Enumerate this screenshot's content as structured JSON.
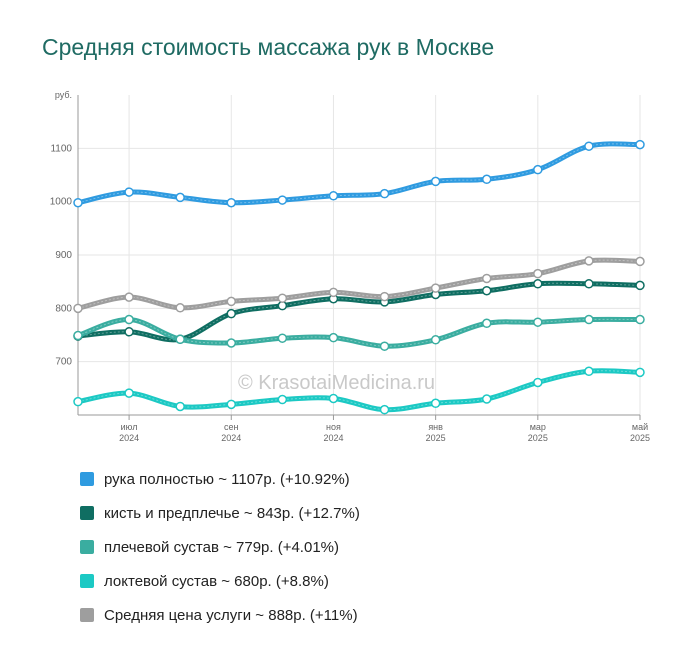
{
  "chart_data": {
    "type": "line",
    "title": "Средняя стоимость массажа рук в Москве",
    "ylabel": "руб.",
    "ylim": [
      600,
      1200
    ],
    "yticks": [
      "700",
      "800",
      "900",
      "1000",
      "1100"
    ],
    "xticks": [
      {
        "index": 1,
        "line1": "июл",
        "line2": "2024"
      },
      {
        "index": 3,
        "line1": "сен",
        "line2": "2024"
      },
      {
        "index": 5,
        "line1": "ноя",
        "line2": "2024"
      },
      {
        "index": 7,
        "line1": "янв",
        "line2": "2025"
      },
      {
        "index": 9,
        "line1": "мар",
        "line2": "2025"
      },
      {
        "index": 11,
        "line1": "май",
        "line2": "2025"
      }
    ],
    "categories": [
      "2024-06",
      "2024-07",
      "2024-08",
      "2024-09",
      "2024-10",
      "2024-11",
      "2024-12",
      "2025-01",
      "2025-02",
      "2025-03",
      "2025-04",
      "2025-05"
    ],
    "grid": true,
    "series": [
      {
        "name": "рука полностью",
        "legend": "рука полностью ~ 1107р. (+10.92%)",
        "color": "#2f9be0",
        "values": [
          998,
          1018,
          1008,
          998,
          1003,
          1011,
          1015,
          1038,
          1042,
          1060,
          1104,
          1107
        ]
      },
      {
        "name": "кисть и предплечье",
        "legend": "кисть и предплечье ~ 843р. (+12.7%)",
        "color": "#0f6e62",
        "values": [
          748,
          756,
          742,
          790,
          805,
          818,
          812,
          826,
          833,
          846,
          846,
          843
        ]
      },
      {
        "name": "плечевой сустав",
        "legend": "плечевой сустав ~ 779р. (+4.01%)",
        "color": "#3aada0",
        "values": [
          749,
          779,
          742,
          735,
          744,
          745,
          729,
          741,
          772,
          774,
          779,
          779
        ]
      },
      {
        "name": "локтевой сустав",
        "legend": "локтевой сустав ~ 680р. (+8.8%)",
        "color": "#1cc9c4",
        "values": [
          625,
          641,
          616,
          620,
          629,
          631,
          610,
          622,
          630,
          661,
          682,
          680
        ]
      },
      {
        "name": "Средняя цена услуги",
        "legend": "Средняя цена услуги ~ 888р. (+11%)",
        "color": "#9e9e9e",
        "values": [
          800,
          821,
          801,
          813,
          819,
          830,
          822,
          838,
          856,
          865,
          889,
          888
        ]
      }
    ],
    "watermark": "© KrasotaiMedicina.ru",
    "legend_position": "bottom-left"
  }
}
